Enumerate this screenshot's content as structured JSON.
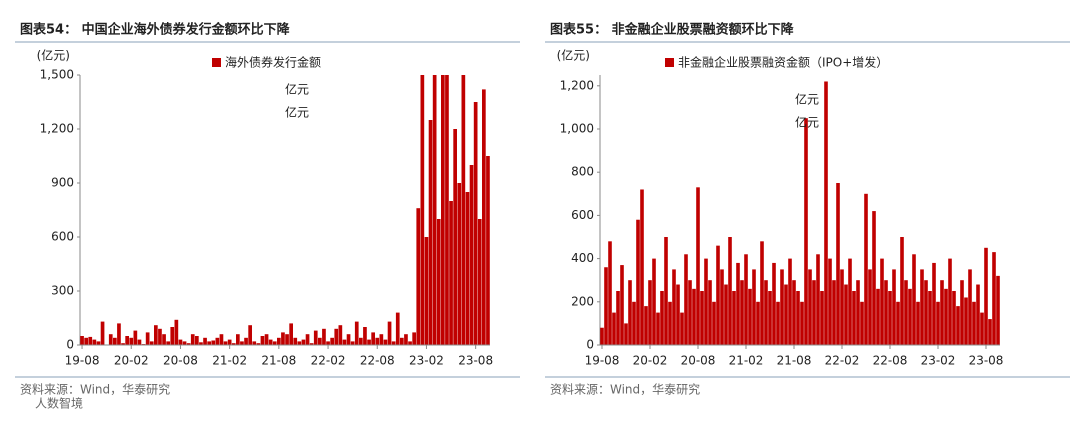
{
  "chart_data": [
    {
      "type": "bar",
      "title": "图表54：  中国企业海外债券发行金额环比下降",
      "y_label": "(亿元)",
      "annotations": [
        "亿元",
        "亿元"
      ],
      "source": "资料来源：Wind，华泰研究",
      "watermark": "人数智境",
      "categories": [
        "19-08",
        null,
        null,
        null,
        null,
        null,
        null,
        null,
        null,
        null,
        null,
        null,
        "20-02",
        null,
        null,
        null,
        null,
        null,
        null,
        null,
        null,
        null,
        null,
        null,
        "20-08",
        null,
        null,
        null,
        null,
        null,
        null,
        null,
        null,
        null,
        null,
        null,
        "21-02",
        null,
        null,
        null,
        null,
        null,
        null,
        null,
        null,
        null,
        null,
        null,
        "21-08",
        null,
        null,
        null,
        null,
        null,
        null,
        null,
        null,
        null,
        null,
        null,
        "22-02",
        null,
        null,
        null,
        null,
        null,
        null,
        null,
        null,
        null,
        null,
        null,
        "22-08",
        null,
        null,
        null,
        null,
        null,
        null,
        null,
        null,
        null,
        null,
        null,
        "23-02",
        null,
        null,
        null,
        null,
        null,
        null,
        null,
        null,
        null,
        null,
        null,
        "23-08",
        null,
        null,
        null
      ],
      "series": [
        {
          "name": "海外债券发行金额",
          "color": "#c00000",
          "values": [
            50,
            40,
            45,
            30,
            20,
            130,
            0,
            60,
            40,
            120,
            10,
            50,
            40,
            80,
            30,
            5,
            70,
            20,
            110,
            90,
            60,
            20,
            100,
            140,
            30,
            20,
            10,
            60,
            50,
            15,
            40,
            20,
            25,
            40,
            60,
            20,
            30,
            10,
            60,
            20,
            40,
            110,
            20,
            10,
            50,
            60,
            30,
            20,
            40,
            70,
            60,
            120,
            40,
            20,
            30,
            60,
            10,
            80,
            40,
            90,
            20,
            40,
            90,
            110,
            30,
            60,
            20,
            130,
            40,
            100,
            30,
            70,
            40,
            60,
            30,
            130,
            20,
            180,
            40,
            60,
            20,
            70,
            760,
            1500,
            600,
            1250,
            1500,
            700,
            1500,
            1500,
            800,
            1200,
            900,
            1500,
            850,
            1000,
            1350,
            700,
            1420,
            1050
          ]
        }
      ],
      "ylim": [
        0,
        1500
      ],
      "yticks": [
        0,
        300,
        600,
        900,
        {
          "value": 1200,
          "label": "1,200"
        },
        {
          "value": 1500,
          "label": "1,500"
        }
      ]
    },
    {
      "type": "bar",
      "title": "图表55：  非金融企业股票融资额环比下降",
      "y_label": "(亿元)",
      "annotations": [
        "亿元",
        "亿元"
      ],
      "source": "资料来源：Wind，华泰研究",
      "categories": [
        "19-08",
        null,
        null,
        null,
        null,
        null,
        null,
        null,
        null,
        null,
        null,
        null,
        "20-02",
        null,
        null,
        null,
        null,
        null,
        null,
        null,
        null,
        null,
        null,
        null,
        "20-08",
        null,
        null,
        null,
        null,
        null,
        null,
        null,
        null,
        null,
        null,
        null,
        "21-02",
        null,
        null,
        null,
        null,
        null,
        null,
        null,
        null,
        null,
        null,
        null,
        "21-08",
        null,
        null,
        null,
        null,
        null,
        null,
        null,
        null,
        null,
        null,
        null,
        "22-02",
        null,
        null,
        null,
        null,
        null,
        null,
        null,
        null,
        null,
        null,
        null,
        "22-08",
        null,
        null,
        null,
        null,
        null,
        null,
        null,
        null,
        null,
        null,
        null,
        "23-02",
        null,
        null,
        null,
        null,
        null,
        null,
        null,
        null,
        null,
        null,
        null,
        "23-08",
        null,
        null,
        null
      ],
      "series": [
        {
          "name": "非金融企业股票融资金额（IPO+增发）",
          "color": "#c00000",
          "values": [
            80,
            360,
            480,
            150,
            250,
            370,
            100,
            300,
            200,
            580,
            720,
            180,
            300,
            400,
            150,
            250,
            500,
            200,
            350,
            280,
            150,
            420,
            300,
            260,
            730,
            250,
            400,
            300,
            200,
            460,
            350,
            280,
            500,
            250,
            380,
            300,
            420,
            260,
            350,
            200,
            480,
            300,
            250,
            380,
            200,
            350,
            280,
            400,
            300,
            250,
            200,
            1050,
            350,
            300,
            420,
            250,
            1220,
            400,
            300,
            750,
            350,
            280,
            400,
            250,
            300,
            200,
            700,
            350,
            620,
            260,
            400,
            300,
            250,
            350,
            200,
            500,
            300,
            260,
            420,
            200,
            350,
            300,
            250,
            380,
            200,
            300,
            260,
            400,
            250,
            180,
            300,
            220,
            350,
            200,
            280,
            150,
            450,
            120,
            430,
            320
          ]
        }
      ],
      "ylim": [
        0,
        1250
      ],
      "yticks": [
        0,
        200,
        400,
        600,
        800,
        {
          "value": 1000,
          "label": "1,000"
        },
        {
          "value": 1200,
          "label": "1,200"
        }
      ]
    }
  ]
}
